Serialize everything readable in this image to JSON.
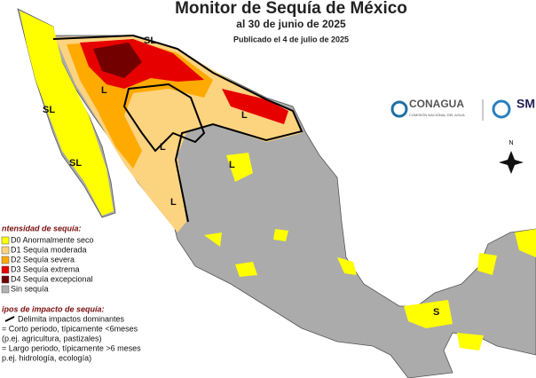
{
  "header": {
    "title": "Monitor de Sequía de México",
    "subtitle": "al 30 de junio de 2025",
    "published": "Publicado el 4 de julio de 2025"
  },
  "logos": {
    "conagua": "CONAGUA",
    "conagua_sub": "COMISIÓN NACIONAL DEL AGUA",
    "smn": "SM"
  },
  "compass": "N",
  "map_labels": [
    "SL",
    "L",
    "SL",
    "L",
    "L",
    "L",
    "L",
    "S",
    "SL"
  ],
  "legend": {
    "title": "ntensidad de sequía:",
    "items": [
      {
        "label": "D0 Anormalmente seco",
        "color": "#ffff00"
      },
      {
        "label": "D1 Sequía moderada",
        "color": "#fcd37f"
      },
      {
        "label": "D2 Sequía severa",
        "color": "#ffaa00"
      },
      {
        "label": "D3 Sequía extrema",
        "color": "#e60000"
      },
      {
        "label": "D4 Sequía excepcional",
        "color": "#730000"
      },
      {
        "label": "Sin sequía",
        "color": "#b2b2b2"
      }
    ]
  },
  "impacts": {
    "title": "ipos de impacto de sequía:",
    "lines": [
      "Delimita impactos dominantes",
      "= Corto periodo, típicamente <6meses",
      "(p.ej. agricultura, pastizales)",
      "= Largo periodo, típicamente >6 meses",
      "p.ej. hidrología, ecología)"
    ]
  }
}
